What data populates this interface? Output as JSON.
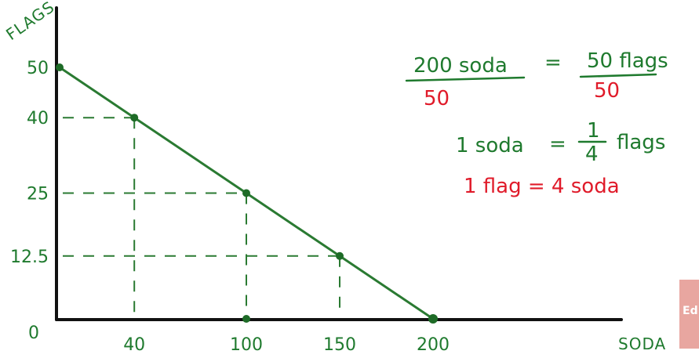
{
  "chart_data": {
    "type": "line",
    "xlabel": "SODA",
    "ylabel": "FLAGS",
    "xlim": [
      0,
      230
    ],
    "ylim": [
      0,
      55
    ],
    "x_ticks": [
      "40",
      "100",
      "150",
      "200"
    ],
    "y_ticks": [
      "50",
      "40",
      "25",
      "12.5"
    ],
    "origin_label": "0",
    "series": [
      {
        "x": [
          0,
          40,
          100,
          150,
          200
        ],
        "y": [
          50,
          40,
          25,
          12.5,
          0
        ]
      }
    ],
    "guides": [
      {
        "x": 40,
        "y": 40
      },
      {
        "x": 100,
        "y": 25
      },
      {
        "x": 150,
        "y": 12.5
      }
    ]
  },
  "notes": {
    "line1": {
      "left_num": "200 soda",
      "eq": "=",
      "right_num": "50 flags",
      "left_den": "50",
      "right_den": "50"
    },
    "line2": {
      "left": "1 soda",
      "eq": "=",
      "frac_num": "1",
      "frac_den": "4",
      "right": "flags"
    },
    "line3": "1 flag = 4 soda"
  },
  "corner_tab": "Ed",
  "colors": {
    "green": "#1f7a2e",
    "red": "#e01b2a",
    "axis": "#111111"
  }
}
